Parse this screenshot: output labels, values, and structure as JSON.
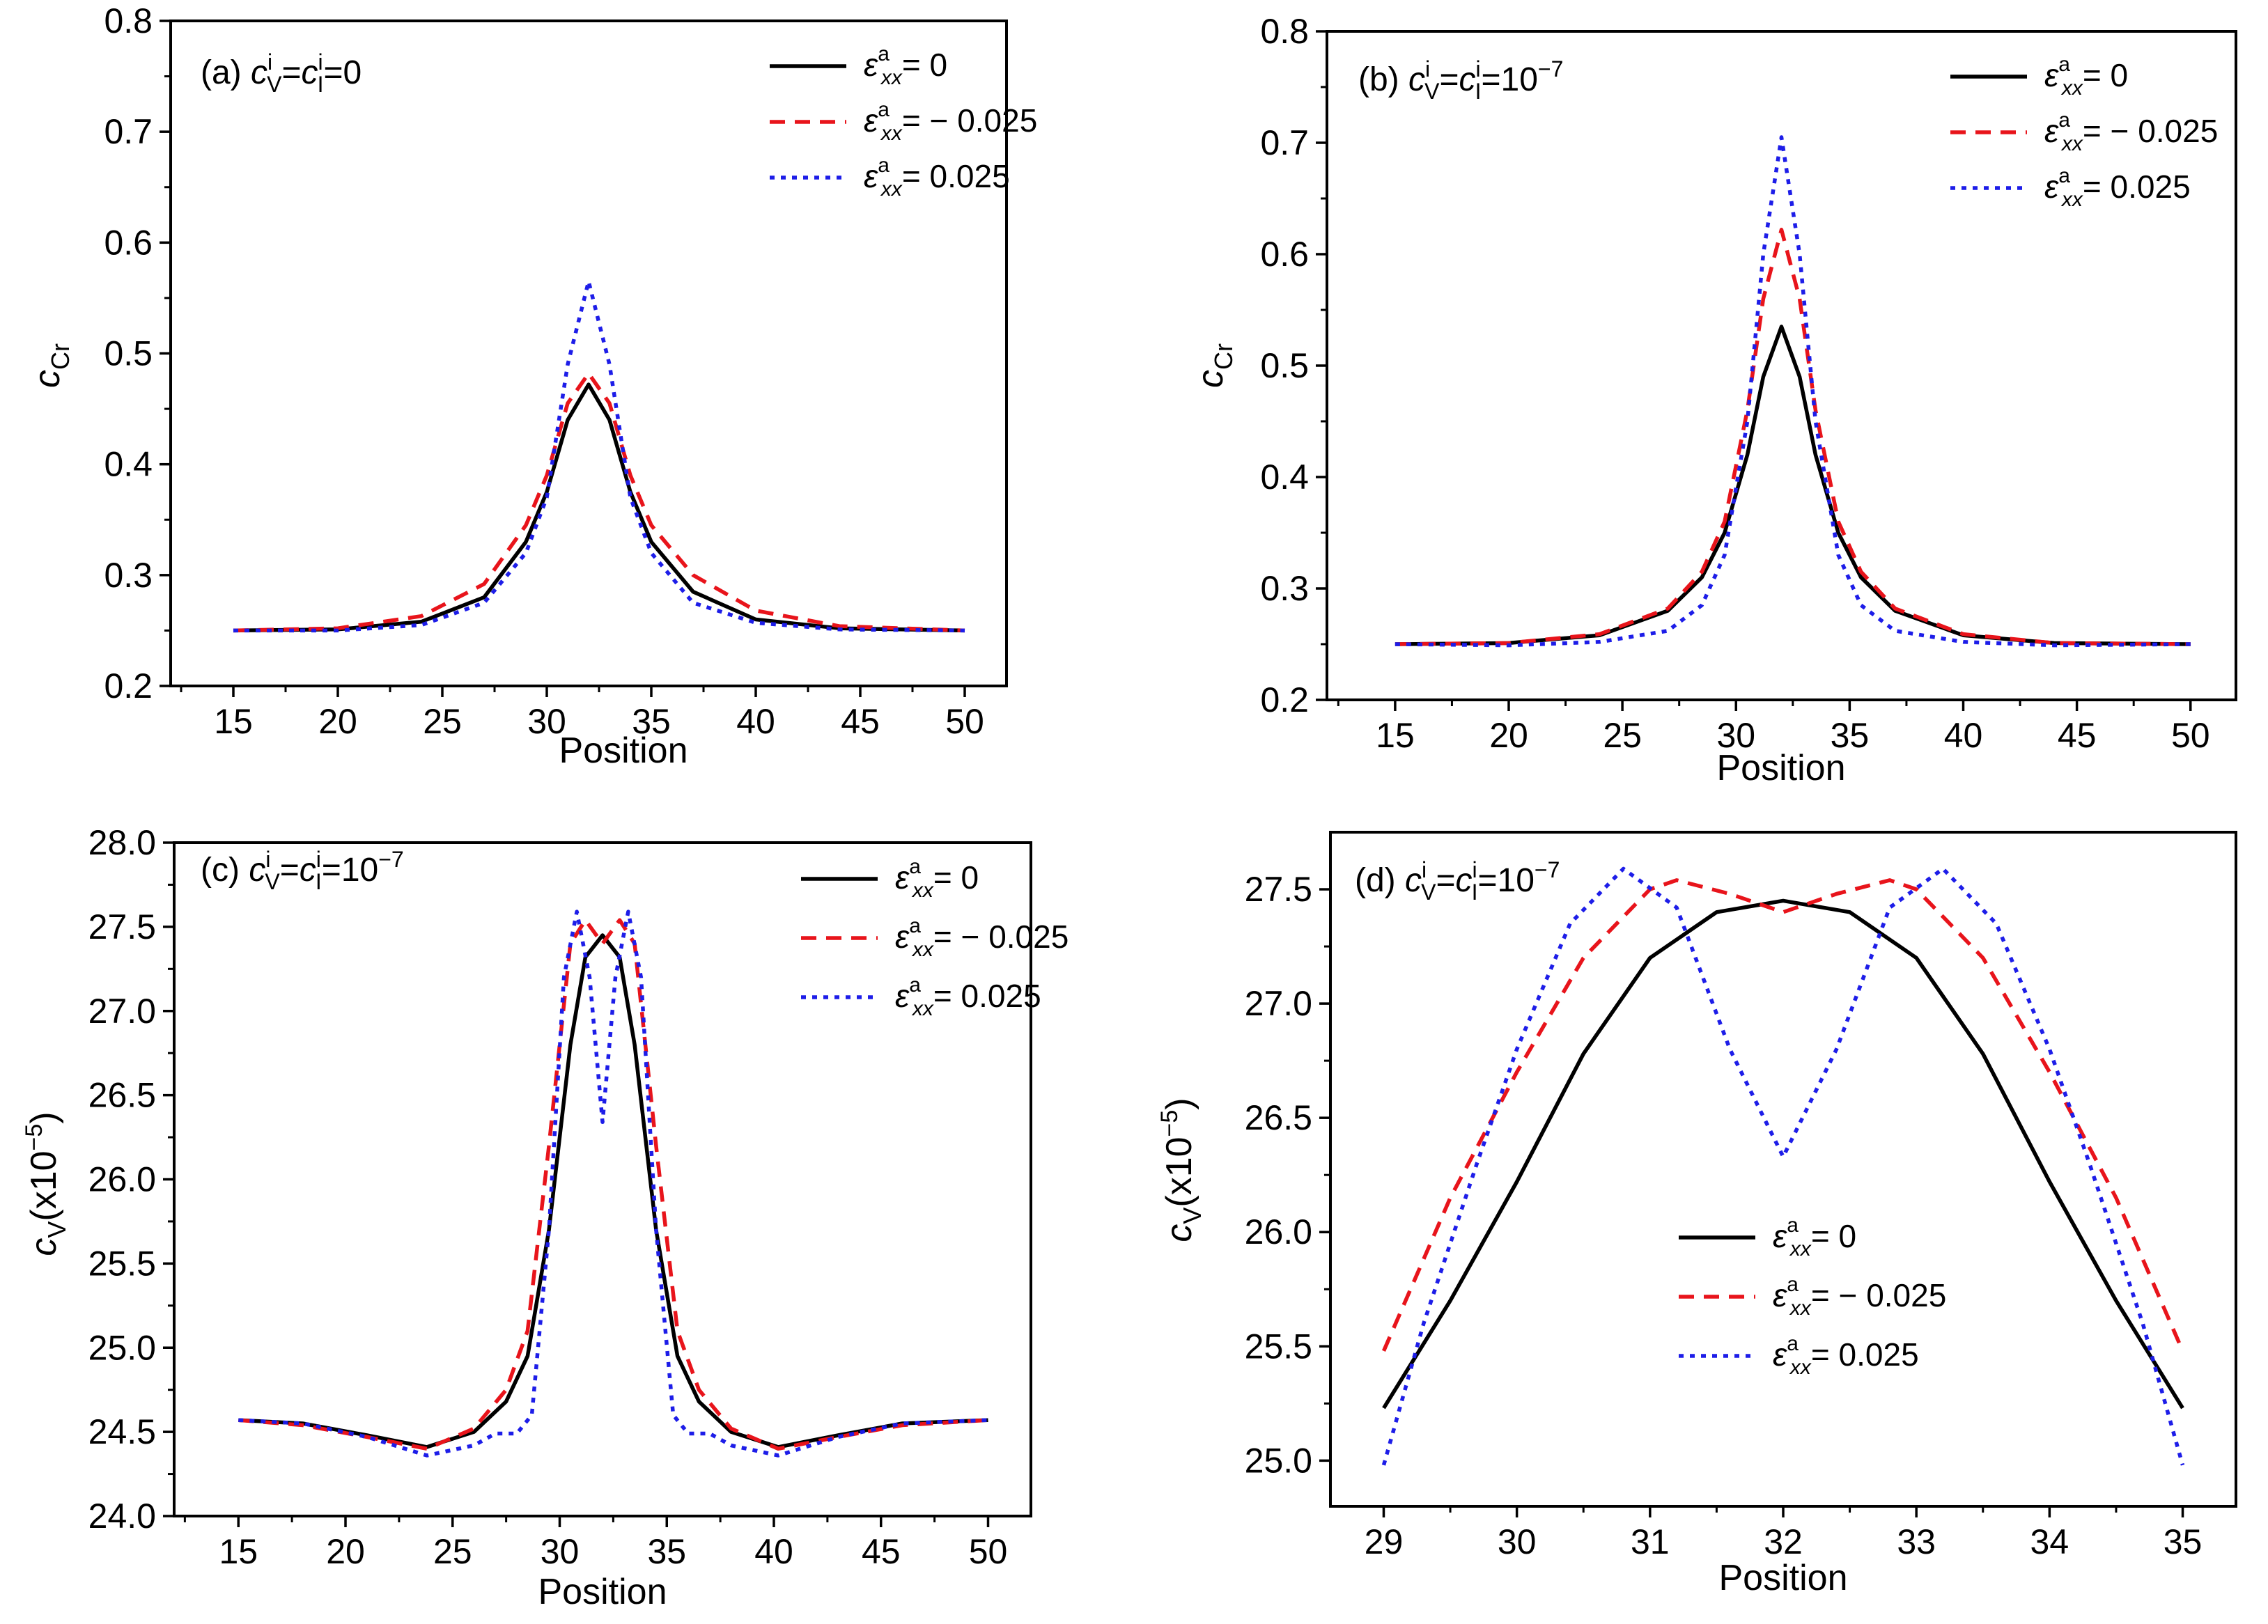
{
  "figure": {
    "panels": [
      {
        "panel_label": "(a)",
        "condition": {
          "c1": "c",
          "s1": "V",
          "sup1": "i",
          "eq1": "=",
          "c2": "c",
          "s2": "I",
          "sup2": "i",
          "tail": "=0",
          "exp": ""
        },
        "xlabel": "Position",
        "ylabel": {
          "main": "c",
          "sub": "Cr",
          "tail": "",
          "exp": "",
          "close": ""
        },
        "legend": [
          {
            "sym": "ε",
            "sub": "xx",
            "sup": "a",
            "value": "= 0"
          },
          {
            "sym": "ε",
            "sub": "xx",
            "sup": "a",
            "value": "= − 0.025"
          },
          {
            "sym": "ε",
            "sub": "xx",
            "sup": "a",
            "value": "= 0.025"
          }
        ]
      },
      {
        "panel_label": "(b)",
        "condition": {
          "c1": "c",
          "s1": "V",
          "sup1": "i",
          "eq1": "=",
          "c2": "c",
          "s2": "I",
          "sup2": "i",
          "tail": "=10",
          "exp": "−7"
        },
        "xlabel": "Position",
        "ylabel": {
          "main": "c",
          "sub": "Cr",
          "tail": "",
          "exp": "",
          "close": ""
        },
        "legend": [
          {
            "sym": "ε",
            "sub": "xx",
            "sup": "a",
            "value": "= 0"
          },
          {
            "sym": "ε",
            "sub": "xx",
            "sup": "a",
            "value": "= − 0.025"
          },
          {
            "sym": "ε",
            "sub": "xx",
            "sup": "a",
            "value": "= 0.025"
          }
        ]
      },
      {
        "panel_label": "(c)",
        "condition": {
          "c1": "c",
          "s1": "V",
          "sup1": "i",
          "eq1": "=",
          "c2": "c",
          "s2": "I",
          "sup2": "i",
          "tail": "=10",
          "exp": "−7"
        },
        "xlabel": "Position",
        "ylabel": {
          "main": "c",
          "sub": "V",
          "tail": "(x10",
          "exp": "−5",
          "close": ")"
        },
        "legend": [
          {
            "sym": "ε",
            "sub": "xx",
            "sup": "a",
            "value": "= 0"
          },
          {
            "sym": "ε",
            "sub": "xx",
            "sup": "a",
            "value": "= − 0.025"
          },
          {
            "sym": "ε",
            "sub": "xx",
            "sup": "a",
            "value": "=  0.025"
          }
        ]
      },
      {
        "panel_label": "(d)",
        "condition": {
          "c1": "c",
          "s1": "V",
          "sup1": "i",
          "eq1": "=",
          "c2": "c",
          "s2": "I",
          "sup2": "i",
          "tail": "=10",
          "exp": "−7"
        },
        "xlabel": "Position",
        "ylabel": {
          "main": "c",
          "sub": "V",
          "tail": "(x10",
          "exp": "−5",
          "close": ")"
        },
        "legend": [
          {
            "sym": "ε",
            "sub": "xx",
            "sup": "a",
            "value": "= 0"
          },
          {
            "sym": "ε",
            "sub": "xx",
            "sup": "a",
            "value": "= − 0.025"
          },
          {
            "sym": "ε",
            "sub": "xx",
            "sup": "a",
            "value": "=  0.025"
          }
        ]
      }
    ]
  },
  "colors": {
    "strain_0": "#000000",
    "strain_neg": "#e8141b",
    "strain_pos": "#1d1de8",
    "axis": "#000000"
  },
  "chart_data": [
    {
      "type": "line",
      "xlim": [
        12,
        52
      ],
      "ylim": [
        0.2,
        0.8
      ],
      "xticks": [
        "15",
        "20",
        "25",
        "30",
        "35",
        "40",
        "45",
        "50"
      ],
      "yticks": [
        "0.2",
        "0.3",
        "0.4",
        "0.5",
        "0.6",
        "0.7",
        "0.8"
      ],
      "series": [
        {
          "name": "strain = 0",
          "x": [
            15,
            20,
            24,
            27,
            29,
            30,
            31,
            32,
            33,
            34,
            35,
            37,
            40,
            44,
            50
          ],
          "y": [
            0.25,
            0.251,
            0.258,
            0.28,
            0.33,
            0.375,
            0.44,
            0.472,
            0.44,
            0.375,
            0.33,
            0.285,
            0.26,
            0.252,
            0.25
          ]
        },
        {
          "name": "strain = -0.025",
          "x": [
            15,
            20,
            24,
            27,
            29,
            30,
            31,
            32,
            33,
            34,
            35,
            37,
            40,
            44,
            50
          ],
          "y": [
            0.25,
            0.252,
            0.263,
            0.292,
            0.345,
            0.39,
            0.455,
            0.482,
            0.455,
            0.39,
            0.345,
            0.3,
            0.268,
            0.254,
            0.25
          ]
        },
        {
          "name": "strain = 0.025",
          "x": [
            15,
            20,
            24,
            27,
            29,
            30,
            31,
            32,
            33,
            34,
            35,
            37,
            40,
            44,
            50
          ],
          "y": [
            0.25,
            0.25,
            0.255,
            0.275,
            0.32,
            0.37,
            0.49,
            0.565,
            0.49,
            0.37,
            0.32,
            0.275,
            0.257,
            0.251,
            0.25
          ]
        }
      ]
    },
    {
      "type": "line",
      "xlim": [
        12,
        52
      ],
      "ylim": [
        0.2,
        0.8
      ],
      "xticks": [
        "15",
        "20",
        "25",
        "30",
        "35",
        "40",
        "45",
        "50"
      ],
      "yticks": [
        "0.2",
        "0.3",
        "0.4",
        "0.5",
        "0.6",
        "0.7",
        "0.8"
      ],
      "series": [
        {
          "name": "strain = 0",
          "x": [
            15,
            20,
            24,
            27,
            28.5,
            29.5,
            30.5,
            31.2,
            32,
            32.8,
            33.5,
            34.5,
            35.5,
            37,
            40,
            44,
            50
          ],
          "y": [
            0.25,
            0.251,
            0.258,
            0.28,
            0.31,
            0.35,
            0.42,
            0.49,
            0.535,
            0.49,
            0.42,
            0.35,
            0.31,
            0.28,
            0.258,
            0.251,
            0.25
          ]
        },
        {
          "name": "strain = -0.025",
          "x": [
            15,
            20,
            24,
            27,
            28.5,
            29.5,
            30.5,
            31.2,
            32,
            32.8,
            33.5,
            34.5,
            35.5,
            37,
            40,
            44,
            50
          ],
          "y": [
            0.25,
            0.251,
            0.259,
            0.282,
            0.315,
            0.36,
            0.46,
            0.56,
            0.622,
            0.56,
            0.46,
            0.36,
            0.315,
            0.282,
            0.259,
            0.251,
            0.25
          ]
        },
        {
          "name": "strain = 0.025",
          "x": [
            15,
            20,
            24,
            27,
            28.5,
            29.5,
            30.5,
            31.2,
            32,
            32.8,
            33.5,
            34.5,
            35.5,
            37,
            40,
            44,
            50
          ],
          "y": [
            0.25,
            0.249,
            0.252,
            0.262,
            0.285,
            0.33,
            0.45,
            0.6,
            0.705,
            0.6,
            0.45,
            0.33,
            0.285,
            0.262,
            0.252,
            0.249,
            0.25
          ]
        }
      ]
    },
    {
      "type": "line",
      "xlim": [
        12,
        52
      ],
      "ylim": [
        24.0,
        28.0
      ],
      "xticks": [
        "15",
        "20",
        "25",
        "30",
        "35",
        "40",
        "45",
        "50"
      ],
      "yticks": [
        "24.0",
        "24.5",
        "25.0",
        "25.5",
        "26.0",
        "26.5",
        "27.0",
        "27.5",
        "28.0"
      ],
      "series": [
        {
          "name": "strain = 0",
          "x": [
            15,
            18,
            21,
            23.8,
            26,
            27.5,
            28.5,
            29.5,
            30.5,
            31.2,
            32,
            32.8,
            33.5,
            34.5,
            35.5,
            36.5,
            38,
            40.2,
            43,
            46,
            50
          ],
          "y": [
            24.57,
            24.55,
            24.48,
            24.41,
            24.5,
            24.68,
            24.95,
            25.7,
            26.8,
            27.32,
            27.45,
            27.32,
            26.8,
            25.7,
            24.95,
            24.68,
            24.5,
            24.41,
            24.48,
            24.55,
            24.57
          ]
        },
        {
          "name": "strain = -0.025",
          "x": [
            15,
            18,
            21,
            23.8,
            26,
            27.5,
            28.5,
            29.5,
            30.5,
            31.2,
            32,
            32.8,
            33.5,
            34.5,
            35.5,
            36.5,
            38,
            40.2,
            43,
            46,
            50
          ],
          "y": [
            24.57,
            24.54,
            24.47,
            24.4,
            24.52,
            24.75,
            25.1,
            26.2,
            27.4,
            27.54,
            27.4,
            27.54,
            27.4,
            26.2,
            25.1,
            24.75,
            24.52,
            24.4,
            24.47,
            24.54,
            24.57
          ]
        },
        {
          "name": "strain = 0.025",
          "x": [
            15,
            18,
            21,
            23.8,
            26,
            27,
            28,
            28.7,
            29.5,
            30.2,
            30.8,
            31.4,
            32,
            32.6,
            33.2,
            33.8,
            34.5,
            35.3,
            36,
            37,
            38,
            40.2,
            43,
            46,
            50
          ],
          "y": [
            24.57,
            24.55,
            24.47,
            24.36,
            24.42,
            24.49,
            24.49,
            24.6,
            25.7,
            27.2,
            27.59,
            27.2,
            26.34,
            27.2,
            27.59,
            27.2,
            25.7,
            24.6,
            24.49,
            24.49,
            24.42,
            24.36,
            24.47,
            24.55,
            24.57
          ]
        }
      ]
    },
    {
      "type": "line",
      "xlim": [
        28.6,
        35.4
      ],
      "ylim": [
        24.8,
        27.75
      ],
      "xticks": [
        "29",
        "30",
        "31",
        "32",
        "33",
        "34",
        "35"
      ],
      "yticks": [
        "25.0",
        "25.5",
        "26.0",
        "26.5",
        "27.0",
        "27.5"
      ],
      "series": [
        {
          "name": "strain = 0",
          "x": [
            29,
            29.5,
            30,
            30.5,
            31,
            31.5,
            32,
            32.5,
            33,
            33.5,
            34,
            34.5,
            35
          ],
          "y": [
            25.23,
            25.7,
            26.22,
            26.78,
            27.2,
            27.4,
            27.45,
            27.4,
            27.2,
            26.78,
            26.22,
            25.7,
            25.23
          ]
        },
        {
          "name": "strain = -0.025",
          "x": [
            29,
            29.5,
            30,
            30.5,
            31,
            31.2,
            31.6,
            32,
            32.4,
            32.8,
            33,
            33.5,
            34,
            34.5,
            35
          ],
          "y": [
            25.48,
            26.15,
            26.7,
            27.2,
            27.5,
            27.54,
            27.48,
            27.4,
            27.48,
            27.54,
            27.5,
            27.2,
            26.7,
            26.15,
            25.48
          ]
        },
        {
          "name": "strain = 0.025",
          "x": [
            29,
            29.3,
            29.7,
            30,
            30.4,
            30.8,
            31.2,
            31.6,
            32,
            32.4,
            32.8,
            33.2,
            33.6,
            34,
            34.3,
            34.7,
            35
          ],
          "y": [
            24.98,
            25.6,
            26.3,
            26.8,
            27.35,
            27.59,
            27.42,
            26.8,
            26.33,
            26.8,
            27.42,
            27.59,
            27.35,
            26.8,
            26.3,
            25.6,
            24.98
          ]
        }
      ]
    }
  ]
}
